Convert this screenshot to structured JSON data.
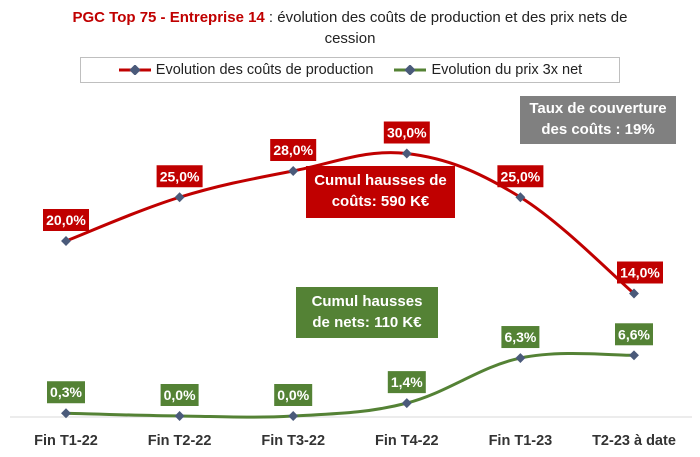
{
  "chart_data": {
    "type": "line",
    "title_prefix": "PGC Top 75 - Entreprise 14",
    "title_rest": " : évolution des coûts de production et des prix nets de cession",
    "categories": [
      "Fin T1-22",
      "Fin T2-22",
      "Fin T3-22",
      "Fin T4-22",
      "Fin T1-23",
      "T2-23 à date"
    ],
    "series": [
      {
        "name": "Evolution des coûts de production",
        "values": [
          20.0,
          25.0,
          28.0,
          30.0,
          25.0,
          14.0
        ],
        "labels": [
          "20,0%",
          "25,0%",
          "28,0%",
          "30,0%",
          "25,0%",
          "14,0%"
        ],
        "color": "#c00000"
      },
      {
        "name": "Evolution du prix 3x net",
        "values": [
          0.3,
          0.0,
          0.0,
          1.4,
          6.3,
          6.6
        ],
        "labels": [
          "0,3%",
          "0,0%",
          "0,0%",
          "1,4%",
          "6,3%",
          "6,6%"
        ],
        "color": "#548235"
      }
    ],
    "legend": "top",
    "grid": false,
    "marker_color": "#4a5a7a"
  },
  "annotations": {
    "coverage_line1": "Taux de couverture",
    "coverage_line2": "des coûts : 19%",
    "costs_line1": "Cumul hausses de",
    "costs_line2": "coûts: 590 K€",
    "nets_line1": "Cumul hausses",
    "nets_line2": "de nets: 110 K€"
  },
  "colors": {
    "red": "#c00000",
    "green": "#548235",
    "gray": "#808080"
  }
}
